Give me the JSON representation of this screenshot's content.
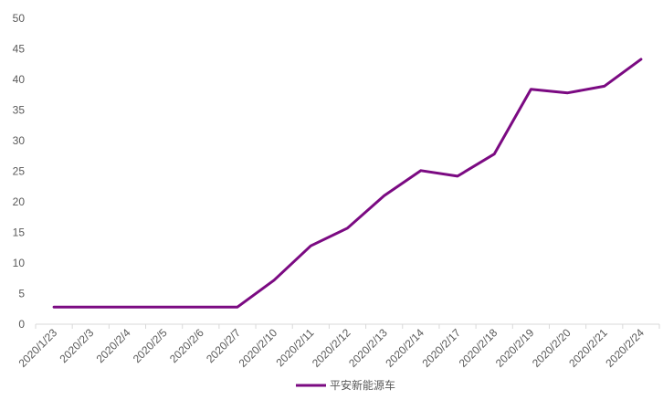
{
  "chart_data": {
    "type": "line",
    "categories": [
      "2020/1/23",
      "2020/2/3",
      "2020/2/4",
      "2020/2/5",
      "2020/2/6",
      "2020/2/7",
      "2020/2/10",
      "2020/2/11",
      "2020/2/12",
      "2020/2/13",
      "2020/2/14",
      "2020/2/17",
      "2020/2/18",
      "2020/2/19",
      "2020/2/20",
      "2020/2/21",
      "2020/2/24"
    ],
    "series": [
      {
        "name": "平安新能源车",
        "color": "#7b0a82",
        "values": [
          2.8,
          2.8,
          2.8,
          2.8,
          2.8,
          2.8,
          7.2,
          12.8,
          15.7,
          21.0,
          25.1,
          24.2,
          27.8,
          38.4,
          37.8,
          38.9,
          43.3
        ]
      }
    ],
    "yticks": [
      0,
      5,
      10,
      15,
      20,
      25,
      30,
      35,
      40,
      45,
      50
    ],
    "ylim": [
      0,
      50
    ],
    "grid": false,
    "legend_position": "bottom"
  }
}
